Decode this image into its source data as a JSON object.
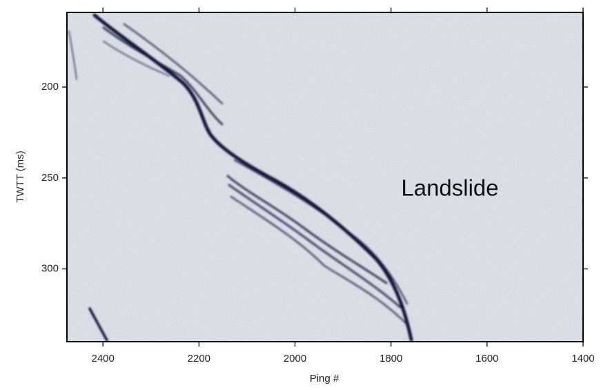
{
  "chart_data": {
    "type": "seismic-profile",
    "xlabel": "Ping #",
    "ylabel": "TWTT (ms)",
    "xlim": [
      2475,
      1400
    ],
    "xticks": [
      2400,
      2200,
      2000,
      1800,
      1600,
      1400
    ],
    "ylim": [
      159,
      340
    ],
    "yticks": [
      200,
      250,
      300
    ],
    "annotation": "Landslide"
  }
}
